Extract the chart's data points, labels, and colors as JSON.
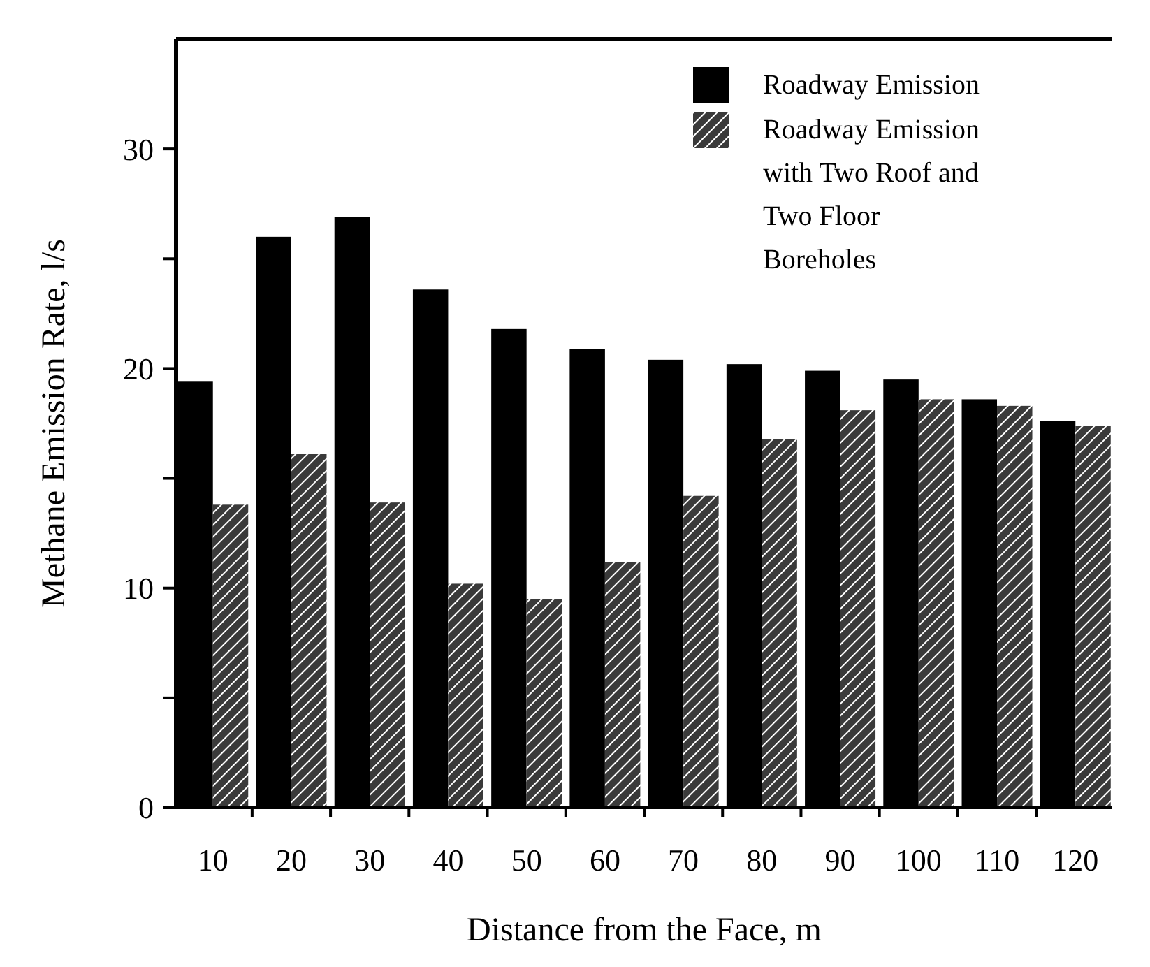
{
  "chart_data": {
    "type": "bar",
    "xlabel": "Distance from the Face, m",
    "ylabel": "Methane Emission Rate, l/s",
    "categories": [
      "10",
      "20",
      "30",
      "40",
      "50",
      "60",
      "70",
      "80",
      "90",
      "100",
      "110",
      "120"
    ],
    "series": [
      {
        "name": "Roadway Emission",
        "color": "#000000",
        "values": [
          19.4,
          26.0,
          26.9,
          23.6,
          21.8,
          20.9,
          20.4,
          20.2,
          19.9,
          19.5,
          18.6,
          17.6
        ]
      },
      {
        "name": "Roadway Emission with Two Roof and Two Floor Boreholes",
        "color": "#3a3a3a",
        "values": [
          13.8,
          16.1,
          13.9,
          10.2,
          9.5,
          11.2,
          14.2,
          16.8,
          18.1,
          18.6,
          18.3,
          17.4
        ]
      }
    ],
    "ylim": [
      0,
      35
    ],
    "yticks": [
      0,
      {
        "value": 5,
        "label": null
      },
      10,
      {
        "value": 15,
        "label": null
      },
      20,
      {
        "value": 25,
        "label": null
      },
      30
    ],
    "grid": false,
    "legend": "top right"
  }
}
